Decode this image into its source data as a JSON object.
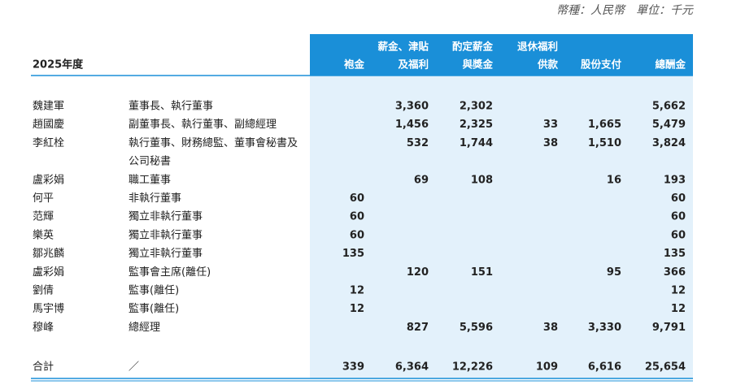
{
  "header": {
    "note": "幣種：人民幣　單位：千元",
    "year": "2025年度"
  },
  "table": {
    "columns": [
      [
        "袍金"
      ],
      [
        "薪金、津貼",
        "及福利"
      ],
      [
        "酌定薪金",
        "與獎金"
      ],
      [
        "退休福利",
        "供款"
      ],
      [
        "股份支付"
      ],
      [
        "總酬金"
      ]
    ],
    "rows": [
      {
        "name": "魏建軍",
        "role": [
          "董事長、執行董事"
        ],
        "values": [
          null,
          "3,360",
          "2,302",
          null,
          null,
          "5,662"
        ]
      },
      {
        "name": "趙國慶",
        "role": [
          "副董事長、執行董事、副總經理"
        ],
        "values": [
          null,
          "1,456",
          "2,325",
          "33",
          "1,665",
          "5,479"
        ]
      },
      {
        "name": "李紅栓",
        "role": [
          "執行董事、財務總監、董事會秘書及",
          "公司秘書"
        ],
        "values": [
          null,
          "532",
          "1,744",
          "38",
          "1,510",
          "3,824"
        ]
      },
      {
        "name": "盧彩娟",
        "role": [
          "職工董事"
        ],
        "values": [
          null,
          "69",
          "108",
          null,
          "16",
          "193"
        ]
      },
      {
        "name": "何平",
        "role": [
          "非執行董事"
        ],
        "values": [
          "60",
          null,
          null,
          null,
          null,
          "60"
        ]
      },
      {
        "name": "范輝",
        "role": [
          "獨立非執行董事"
        ],
        "values": [
          "60",
          null,
          null,
          null,
          null,
          "60"
        ]
      },
      {
        "name": "樂英",
        "role": [
          "獨立非執行董事"
        ],
        "values": [
          "60",
          null,
          null,
          null,
          null,
          "60"
        ]
      },
      {
        "name": "鄒兆麟",
        "role": [
          "獨立非執行董事"
        ],
        "values": [
          "135",
          null,
          null,
          null,
          null,
          "135"
        ]
      },
      {
        "name": "盧彩娟",
        "role": [
          "監事會主席(離任)"
        ],
        "values": [
          null,
          "120",
          "151",
          null,
          "95",
          "366"
        ]
      },
      {
        "name": "劉倩",
        "role": [
          "監事(離任)"
        ],
        "values": [
          "12",
          null,
          null,
          null,
          null,
          "12"
        ]
      },
      {
        "name": "馬宇博",
        "role": [
          "監事(離任)"
        ],
        "values": [
          "12",
          null,
          null,
          null,
          null,
          "12"
        ]
      },
      {
        "name": "穆峰",
        "role": [
          "總經理"
        ],
        "values": [
          null,
          "827",
          "5,596",
          "38",
          "3,330",
          "9,791"
        ]
      }
    ],
    "total": {
      "name": "合計",
      "role": [
        "／"
      ],
      "values": [
        "339",
        "6,364",
        "12,226",
        "109",
        "6,616",
        "25,654"
      ]
    }
  }
}
